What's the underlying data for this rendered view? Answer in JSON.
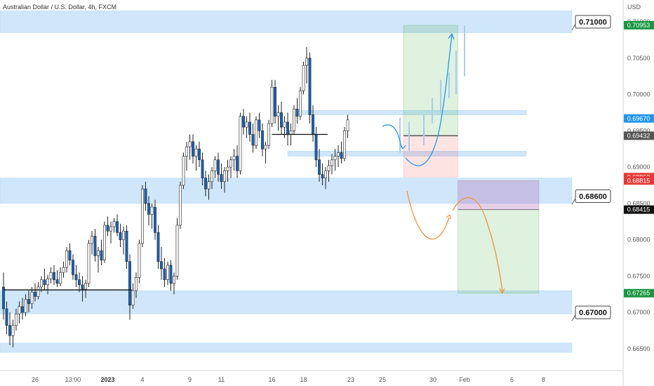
{
  "header": {
    "title": "Australian Dollar / U.S. Dollar, 4h, FXCM",
    "currency": "USD"
  },
  "chart_data": {
    "type": "candlestick",
    "symbol": "Australian Dollar / U.S. Dollar",
    "timeframe": "4h",
    "source": "FXCM",
    "ylim": [
      0.662,
      0.713
    ],
    "y_ticks": [
      "0.71000",
      "0.70500",
      "0.70000",
      "0.69500",
      "0.69000",
      "0.68500",
      "0.68000",
      "0.67500",
      "0.67000",
      "0.66500"
    ],
    "x_ticks": [
      {
        "label": "26",
        "bold": false,
        "bar": 10
      },
      {
        "label": "13:00",
        "bold": false,
        "bar": 22
      },
      {
        "label": "2023",
        "bold": true,
        "bar": 33
      },
      {
        "label": "4",
        "bold": false,
        "bar": 44
      },
      {
        "label": "9",
        "bold": false,
        "bar": 59
      },
      {
        "label": "11",
        "bold": false,
        "bar": 69
      },
      {
        "label": "16",
        "bold": false,
        "bar": 85
      },
      {
        "label": "18",
        "bold": false,
        "bar": 95
      },
      {
        "label": "23",
        "bold": false,
        "bar": 110
      },
      {
        "label": "25",
        "bold": false,
        "bar": 120
      },
      {
        "label": "30",
        "bold": false,
        "bar": 136
      },
      {
        "label": "Feb",
        "bold": false,
        "bar": 146
      },
      {
        "label": "6",
        "bold": false,
        "bar": 161
      },
      {
        "label": "8",
        "bold": false,
        "bar": 171
      }
    ],
    "candles": [
      [
        0.6735,
        0.6755,
        0.669,
        0.6705
      ],
      [
        0.6705,
        0.6715,
        0.667,
        0.6682
      ],
      [
        0.6682,
        0.67,
        0.6655,
        0.6668
      ],
      [
        0.6668,
        0.669,
        0.6652,
        0.6682
      ],
      [
        0.6682,
        0.6705,
        0.6675,
        0.6698
      ],
      [
        0.6698,
        0.6715,
        0.6685,
        0.6708
      ],
      [
        0.6708,
        0.672,
        0.669,
        0.67
      ],
      [
        0.67,
        0.6725,
        0.6695,
        0.6718
      ],
      [
        0.6718,
        0.673,
        0.67,
        0.6712
      ],
      [
        0.6712,
        0.6735,
        0.6705,
        0.6728
      ],
      [
        0.6728,
        0.674,
        0.6715,
        0.6722
      ],
      [
        0.6722,
        0.6742,
        0.6718,
        0.6735
      ],
      [
        0.6735,
        0.675,
        0.6728,
        0.6745
      ],
      [
        0.6745,
        0.676,
        0.673,
        0.6738
      ],
      [
        0.6738,
        0.6752,
        0.6725,
        0.6746
      ],
      [
        0.6746,
        0.6762,
        0.674,
        0.6755
      ],
      [
        0.6755,
        0.6765,
        0.6738,
        0.6745
      ],
      [
        0.6745,
        0.6758,
        0.6735,
        0.674
      ],
      [
        0.674,
        0.6762,
        0.6736,
        0.6755
      ],
      [
        0.6755,
        0.677,
        0.6748,
        0.6762
      ],
      [
        0.6762,
        0.679,
        0.6755,
        0.6785
      ],
      [
        0.6785,
        0.6795,
        0.6765,
        0.6772
      ],
      [
        0.6772,
        0.678,
        0.6745,
        0.6752
      ],
      [
        0.6752,
        0.6765,
        0.6735,
        0.6745
      ],
      [
        0.6745,
        0.6755,
        0.6728,
        0.6738
      ],
      [
        0.6738,
        0.675,
        0.6715,
        0.6732
      ],
      [
        0.6732,
        0.6745,
        0.672,
        0.674
      ],
      [
        0.674,
        0.68,
        0.6735,
        0.6795
      ],
      [
        0.6795,
        0.6812,
        0.678,
        0.6805
      ],
      [
        0.6805,
        0.6815,
        0.677,
        0.6778
      ],
      [
        0.6778,
        0.679,
        0.6755,
        0.6785
      ],
      [
        0.6785,
        0.68,
        0.6765,
        0.6772
      ],
      [
        0.6772,
        0.6825,
        0.6768,
        0.682
      ],
      [
        0.682,
        0.6832,
        0.6805,
        0.6812
      ],
      [
        0.6812,
        0.6825,
        0.6795,
        0.6818
      ],
      [
        0.6818,
        0.683,
        0.681,
        0.6825
      ],
      [
        0.6825,
        0.6835,
        0.6805,
        0.681
      ],
      [
        0.681,
        0.6822,
        0.679,
        0.68
      ],
      [
        0.68,
        0.6818,
        0.678,
        0.6812
      ],
      [
        0.6812,
        0.682,
        0.676,
        0.677
      ],
      [
        0.677,
        0.678,
        0.669,
        0.671
      ],
      [
        0.671,
        0.674,
        0.6705,
        0.673
      ],
      [
        0.673,
        0.6755,
        0.672,
        0.6748
      ],
      [
        0.6748,
        0.68,
        0.674,
        0.6795
      ],
      [
        0.6795,
        0.6875,
        0.679,
        0.687
      ],
      [
        0.687,
        0.688,
        0.684,
        0.685
      ],
      [
        0.685,
        0.686,
        0.682,
        0.6835
      ],
      [
        0.6835,
        0.685,
        0.6815,
        0.6845
      ],
      [
        0.6845,
        0.6855,
        0.68,
        0.681
      ],
      [
        0.681,
        0.682,
        0.676,
        0.677
      ],
      [
        0.677,
        0.679,
        0.6745,
        0.676
      ],
      [
        0.676,
        0.6775,
        0.6735,
        0.6745
      ],
      [
        0.6745,
        0.677,
        0.6738,
        0.6765
      ],
      [
        0.6765,
        0.6772,
        0.673,
        0.674
      ],
      [
        0.674,
        0.6755,
        0.6725,
        0.675
      ],
      [
        0.675,
        0.683,
        0.6745,
        0.682
      ],
      [
        0.682,
        0.688,
        0.6815,
        0.6875
      ],
      [
        0.6875,
        0.692,
        0.687,
        0.6915
      ],
      [
        0.6915,
        0.6935,
        0.6895,
        0.6928
      ],
      [
        0.6928,
        0.6945,
        0.691,
        0.6935
      ],
      [
        0.6935,
        0.6945,
        0.6905,
        0.6915
      ],
      [
        0.6915,
        0.693,
        0.6895,
        0.6925
      ],
      [
        0.6925,
        0.6935,
        0.69,
        0.691
      ],
      [
        0.691,
        0.692,
        0.6875,
        0.6885
      ],
      [
        0.6885,
        0.6895,
        0.686,
        0.687
      ],
      [
        0.687,
        0.689,
        0.6855,
        0.688
      ],
      [
        0.688,
        0.69,
        0.687,
        0.6895
      ],
      [
        0.6895,
        0.6915,
        0.6885,
        0.691
      ],
      [
        0.691,
        0.692,
        0.688,
        0.689
      ],
      [
        0.689,
        0.6905,
        0.687,
        0.688
      ],
      [
        0.688,
        0.69,
        0.6865,
        0.6895
      ],
      [
        0.6895,
        0.691,
        0.688,
        0.69
      ],
      [
        0.69,
        0.6915,
        0.6885,
        0.691
      ],
      [
        0.691,
        0.6925,
        0.6895,
        0.6915
      ],
      [
        0.6915,
        0.693,
        0.6885,
        0.6895
      ],
      [
        0.6895,
        0.6975,
        0.689,
        0.697
      ],
      [
        0.697,
        0.698,
        0.6945,
        0.6955
      ],
      [
        0.6955,
        0.697,
        0.694,
        0.6962
      ],
      [
        0.6962,
        0.6975,
        0.6935,
        0.6945
      ],
      [
        0.6945,
        0.696,
        0.692,
        0.693
      ],
      [
        0.693,
        0.697,
        0.6925,
        0.6965
      ],
      [
        0.6965,
        0.6975,
        0.694,
        0.695
      ],
      [
        0.695,
        0.696,
        0.6915,
        0.6925
      ],
      [
        0.6925,
        0.6935,
        0.6905,
        0.693
      ],
      [
        0.693,
        0.6965,
        0.6925,
        0.696
      ],
      [
        0.696,
        0.702,
        0.6955,
        0.701
      ],
      [
        0.701,
        0.702,
        0.696,
        0.697
      ],
      [
        0.697,
        0.6985,
        0.695,
        0.6975
      ],
      [
        0.6975,
        0.699,
        0.6945,
        0.6955
      ],
      [
        0.6955,
        0.697,
        0.694,
        0.6962
      ],
      [
        0.6962,
        0.6975,
        0.693,
        0.6945
      ],
      [
        0.6945,
        0.696,
        0.693,
        0.695
      ],
      [
        0.695,
        0.6985,
        0.6945,
        0.698
      ],
      [
        0.698,
        0.6995,
        0.696,
        0.697
      ],
      [
        0.697,
        0.701,
        0.6965,
        0.7005
      ],
      [
        0.7005,
        0.7045,
        0.7,
        0.704
      ],
      [
        0.704,
        0.7065,
        0.7015,
        0.705
      ],
      [
        0.705,
        0.7058,
        0.696,
        0.6972
      ],
      [
        0.6972,
        0.6985,
        0.6935,
        0.6945
      ],
      [
        0.6945,
        0.6955,
        0.69,
        0.691
      ],
      [
        0.691,
        0.6925,
        0.688,
        0.689
      ],
      [
        0.689,
        0.6905,
        0.6875,
        0.6885
      ],
      [
        0.6885,
        0.69,
        0.687,
        0.6895
      ],
      [
        0.6895,
        0.691,
        0.688,
        0.6902
      ],
      [
        0.6902,
        0.6918,
        0.689,
        0.691
      ],
      [
        0.691,
        0.6925,
        0.6895,
        0.6915
      ],
      [
        0.6915,
        0.693,
        0.69,
        0.692
      ],
      [
        0.692,
        0.6935,
        0.6905,
        0.6912
      ],
      [
        0.6912,
        0.6955,
        0.6908,
        0.695
      ],
      [
        0.695,
        0.6972,
        0.694,
        0.6965
      ]
    ],
    "zones": [
      {
        "name": "resistance-zone",
        "y1": 0.7085,
        "y2": 0.7115
      },
      {
        "name": "mid-zone-upper",
        "y1": 0.6972,
        "y2": 0.6978
      },
      {
        "name": "mid-zone-lower",
        "y1": 0.6915,
        "y2": 0.6922
      },
      {
        "name": "support-zone",
        "y1": 0.685,
        "y2": 0.6885
      },
      {
        "name": "lower-zone",
        "y1": 0.6698,
        "y2": 0.673
      },
      {
        "name": "bottom-zone",
        "y1": 0.6645,
        "y2": 0.6658
      }
    ],
    "levels": [
      {
        "name": "left-support-line",
        "bar1": 0,
        "bar2": 40,
        "y": 0.6731
      },
      {
        "name": "mid-black-line",
        "bar1": 85,
        "bar2": 102,
        "y": 0.6945
      }
    ],
    "long_position": {
      "bar1": 120,
      "bar2": 135,
      "entry": 0.69432,
      "target": 0.70953,
      "stop": 0.68863
    },
    "short_position": {
      "bar1": 135,
      "bar2": 150,
      "entry": 0.68415,
      "target": 0.67265,
      "stop": 0.68815
    },
    "callouts": [
      {
        "label": "0.71000",
        "y": 0.71
      },
      {
        "label": "0.68600",
        "y": 0.686
      },
      {
        "label": "0.67000",
        "y": 0.67
      }
    ],
    "price_badges": [
      {
        "label": "0.70953",
        "y": 0.70953,
        "color": "#1a9641"
      },
      {
        "label": "0.69670",
        "y": 0.6967,
        "color": "#2196f3"
      },
      {
        "label": "0.69432",
        "y": 0.69432,
        "color": "#555555"
      },
      {
        "label": "0.68863",
        "y": 0.68863,
        "color": "#e53935"
      },
      {
        "label": "0.68815",
        "y": 0.68815,
        "color": "#e53935"
      },
      {
        "label": "0.68415",
        "y": 0.68415,
        "color": "#111111"
      },
      {
        "label": "0.67265",
        "y": 0.67265,
        "color": "#1a9641"
      }
    ]
  }
}
